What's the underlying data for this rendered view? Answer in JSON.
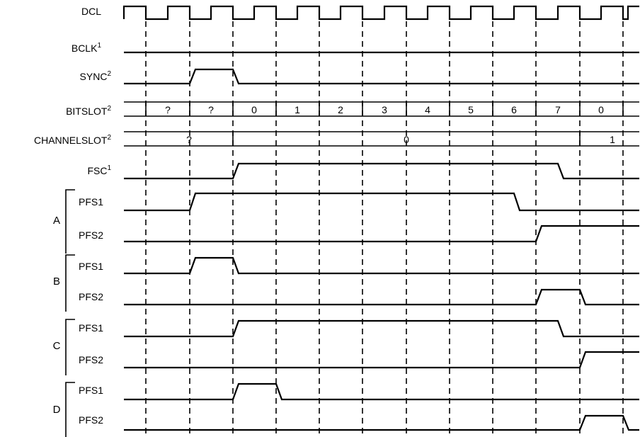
{
  "signals": {
    "dcl": {
      "name": "DCL",
      "sup": ""
    },
    "bclk": {
      "name": "BCLK",
      "sup": "1"
    },
    "sync": {
      "name": "SYNC",
      "sup": "2"
    },
    "bitslot": {
      "name": "BITSLOT",
      "sup": "2"
    },
    "channelslot": {
      "name": "CHANNELSLOT",
      "sup": "2"
    },
    "fsc": {
      "name": "FSC",
      "sup": "1"
    }
  },
  "groups": [
    {
      "letter": "A",
      "pfs1": "PFS1",
      "pfs2": "PFS2"
    },
    {
      "letter": "B",
      "pfs1": "PFS1",
      "pfs2": "PFS2"
    },
    {
      "letter": "C",
      "pfs1": "PFS1",
      "pfs2": "PFS2"
    },
    {
      "letter": "D",
      "pfs1": "PFS1",
      "pfs2": "PFS2"
    }
  ],
  "bitslot_values": [
    "?",
    "?",
    "0",
    "1",
    "2",
    "3",
    "4",
    "5",
    "6",
    "7",
    "0"
  ],
  "channelslot_values": [
    "?",
    "0",
    "1"
  ]
}
